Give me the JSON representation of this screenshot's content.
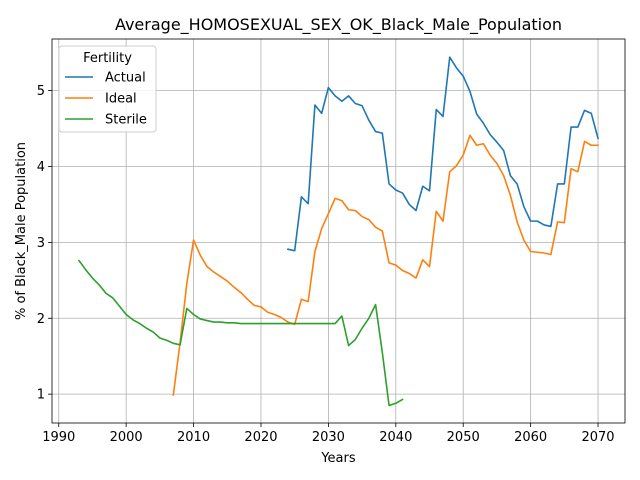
{
  "chart_data": {
    "type": "line",
    "title": "Average_HOMOSEXUAL_SEX_OK_Black_Male_Population",
    "xlabel": "Years",
    "ylabel": "% of Black_Male Population",
    "xlim": [
      1989,
      2074
    ],
    "ylim": [
      0.62,
      5.68
    ],
    "xticks": [
      1990,
      2000,
      2010,
      2020,
      2030,
      2040,
      2050,
      2060,
      2070
    ],
    "yticks": [
      1,
      2,
      3,
      4,
      5
    ],
    "grid": true,
    "legend": {
      "title": "Fertility",
      "position": "top-left"
    },
    "series": [
      {
        "name": "Actual",
        "color": "#1f77b4",
        "x": [
          2024,
          2025,
          2026,
          2027,
          2028,
          2029,
          2030,
          2031,
          2032,
          2033,
          2034,
          2035,
          2036,
          2037,
          2038,
          2039,
          2040,
          2041,
          2042,
          2043,
          2044,
          2045,
          2046,
          2047,
          2048,
          2049,
          2050,
          2051,
          2052,
          2053,
          2054,
          2055,
          2056,
          2057,
          2058,
          2059,
          2060,
          2061,
          2062,
          2063,
          2064,
          2065,
          2066,
          2067,
          2068,
          2069,
          2070
        ],
        "y": [
          2.91,
          2.89,
          3.6,
          3.51,
          4.81,
          4.7,
          5.04,
          4.93,
          4.86,
          4.93,
          4.83,
          4.8,
          4.61,
          4.46,
          4.44,
          3.77,
          3.69,
          3.65,
          3.5,
          3.42,
          3.74,
          3.68,
          4.75,
          4.66,
          5.44,
          5.3,
          5.19,
          4.99,
          4.69,
          4.57,
          4.42,
          4.32,
          4.21,
          3.88,
          3.77,
          3.47,
          3.28,
          3.28,
          3.23,
          3.21,
          3.77,
          3.77,
          4.52,
          4.52,
          4.74,
          4.7,
          4.37
        ]
      },
      {
        "name": "Ideal",
        "color": "#ff7f0e",
        "x": [
          2007,
          2008,
          2009,
          2010,
          2011,
          2012,
          2013,
          2014,
          2015,
          2016,
          2017,
          2018,
          2019,
          2020,
          2021,
          2022,
          2023,
          2024,
          2025,
          2026,
          2027,
          2028,
          2029,
          2030,
          2031,
          2032,
          2033,
          2034,
          2035,
          2036,
          2037,
          2038,
          2039,
          2040,
          2041,
          2042,
          2043,
          2044,
          2045,
          2046,
          2047,
          2048,
          2049,
          2050,
          2051,
          2052,
          2053,
          2054,
          2055,
          2056,
          2057,
          2058,
          2059,
          2060,
          2061,
          2062,
          2063,
          2064,
          2065,
          2066,
          2067,
          2068,
          2069,
          2070
        ],
        "y": [
          0.99,
          1.68,
          2.46,
          3.03,
          2.83,
          2.68,
          2.61,
          2.55,
          2.49,
          2.41,
          2.34,
          2.25,
          2.17,
          2.15,
          2.08,
          2.05,
          2.01,
          1.95,
          1.92,
          2.25,
          2.22,
          2.88,
          3.18,
          3.38,
          3.58,
          3.55,
          3.43,
          3.42,
          3.34,
          3.3,
          3.2,
          3.15,
          2.73,
          2.7,
          2.63,
          2.59,
          2.53,
          2.77,
          2.68,
          3.41,
          3.28,
          3.93,
          4.01,
          4.15,
          4.41,
          4.28,
          4.3,
          4.15,
          4.04,
          3.88,
          3.62,
          3.27,
          3.03,
          2.88,
          2.87,
          2.86,
          2.84,
          3.27,
          3.26,
          3.97,
          3.93,
          4.33,
          4.28,
          4.28
        ]
      },
      {
        "name": "Sterile",
        "color": "#2ca02c",
        "x": [
          1993,
          1994,
          1995,
          1996,
          1997,
          1998,
          1999,
          2000,
          2001,
          2002,
          2003,
          2004,
          2005,
          2006,
          2007,
          2008,
          2009,
          2010,
          2011,
          2012,
          2013,
          2014,
          2015,
          2016,
          2017,
          2018,
          2019,
          2020,
          2021,
          2022,
          2023,
          2024,
          2025,
          2026,
          2027,
          2028,
          2029,
          2030,
          2031,
          2032,
          2033,
          2034,
          2035,
          2036,
          2037,
          2038,
          2039,
          2040,
          2041
        ],
        "y": [
          2.76,
          2.64,
          2.53,
          2.44,
          2.33,
          2.27,
          2.16,
          2.05,
          1.98,
          1.93,
          1.87,
          1.82,
          1.74,
          1.71,
          1.67,
          1.65,
          2.13,
          2.05,
          1.99,
          1.97,
          1.95,
          1.95,
          1.94,
          1.94,
          1.93,
          1.93,
          1.93,
          1.93,
          1.93,
          1.93,
          1.93,
          1.93,
          1.93,
          1.93,
          1.93,
          1.93,
          1.93,
          1.93,
          1.93,
          2.03,
          1.64,
          1.72,
          1.87,
          2.0,
          2.18,
          1.55,
          0.85,
          0.88,
          0.93
        ]
      }
    ]
  }
}
